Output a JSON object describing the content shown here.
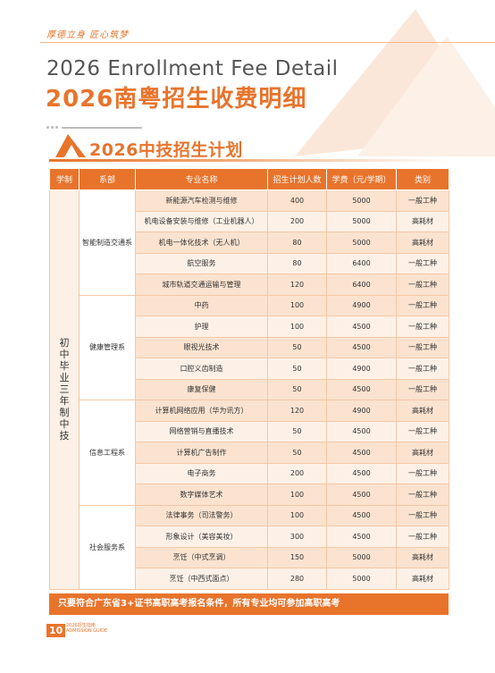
{
  "tagline": "厚德立身 匠心筑梦",
  "title_en": "2026 Enrollment Fee Detail",
  "title_cn": "2026南粤招生收费明细",
  "section_title": "2026中技招生计划",
  "headers": [
    "学制",
    "系部",
    "专业名称",
    "招生计划人数",
    "学费（元/学期）",
    "类别"
  ],
  "schooling": "初中毕业三年制中技",
  "departments": [
    {
      "name": "智能制造交通系",
      "rows": [
        {
          "major": "新能源汽车检测与维修",
          "plan": "400",
          "fee": "5000",
          "type": "一般工种"
        },
        {
          "major": "机电设备安装与维修（工业机器人）",
          "plan": "200",
          "fee": "5000",
          "type": "高耗材"
        },
        {
          "major": "机电一体化技术（无人机）",
          "plan": "80",
          "fee": "5000",
          "type": "高耗材"
        },
        {
          "major": "航空服务",
          "plan": "80",
          "fee": "6400",
          "type": "一般工种"
        },
        {
          "major": "城市轨道交通运输与管理",
          "plan": "120",
          "fee": "6400",
          "type": "一般工种"
        }
      ]
    },
    {
      "name": "健康管理系",
      "rows": [
        {
          "major": "中药",
          "plan": "100",
          "fee": "4900",
          "type": "一般工种"
        },
        {
          "major": "护理",
          "plan": "100",
          "fee": "4500",
          "type": "一般工种"
        },
        {
          "major": "眼视光技术",
          "plan": "50",
          "fee": "4500",
          "type": "一般工种"
        },
        {
          "major": "口腔义齿制造",
          "plan": "50",
          "fee": "4900",
          "type": "一般工种"
        },
        {
          "major": "康复保健",
          "plan": "50",
          "fee": "4500",
          "type": "一般工种"
        }
      ]
    },
    {
      "name": "信息工程系",
      "rows": [
        {
          "major": "计算机网络应用（华为讯方）",
          "plan": "120",
          "fee": "4900",
          "type": "高耗材"
        },
        {
          "major": "网络营销与直播技术",
          "plan": "50",
          "fee": "4500",
          "type": "一般工种"
        },
        {
          "major": "计算机广告制作",
          "plan": "50",
          "fee": "4500",
          "type": "高耗材"
        },
        {
          "major": "电子商务",
          "plan": "200",
          "fee": "4500",
          "type": "一般工种"
        },
        {
          "major": "数字媒体艺术",
          "plan": "100",
          "fee": "4500",
          "type": "一般工种"
        }
      ]
    },
    {
      "name": "社会服务系",
      "rows": [
        {
          "major": "法律事务（司法警务）",
          "plan": "100",
          "fee": "4500",
          "type": "一般工种"
        },
        {
          "major": "形象设计（美容美妆）",
          "plan": "300",
          "fee": "4500",
          "type": "一般工种"
        },
        {
          "major": "烹饪（中式烹调）",
          "plan": "150",
          "fee": "5000",
          "type": "高耗材"
        },
        {
          "major": "烹饪（中西式面点）",
          "plan": "280",
          "fee": "5000",
          "type": "高耗材"
        }
      ]
    }
  ],
  "footer_note": "只要符合广东省3+证书高职高考报名条件，所有专业均可参加高职高考",
  "page_number": "10",
  "guide_cn": "2026招生指南",
  "guide_en": "ADMISSION GUIDE",
  "colors": {
    "accent": "#e8742c",
    "light": "#fbe3d0"
  }
}
